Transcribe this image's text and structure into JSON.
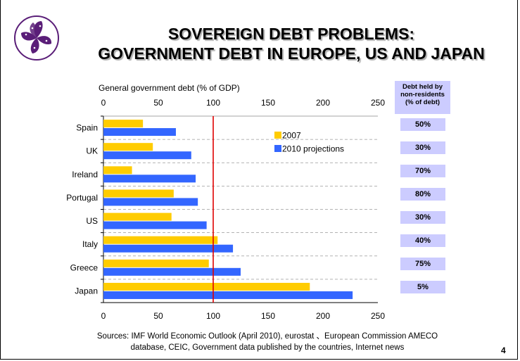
{
  "slide": {
    "title_line1": "SOVEREIGN DEBT PROBLEMS:",
    "title_line2": "GOVERNMENT DEBT IN EUROPE, US AND JAPAN",
    "page_number": "4",
    "sources_line1": "Sources:  IMF World Economic Outlook (April 2010),  eurostat 、European Commission AMECO",
    "sources_line2": "database, CEIC, Government data published by the countries, Internet news",
    "logo_icon": "bauhinia-flower-logo",
    "colors": {
      "bar_2007": "#ffcc00",
      "bar_2010": "#3366ff",
      "reference_line": "#e00000",
      "badge_bg": "#ccccff"
    }
  },
  "chart_data": {
    "type": "bar",
    "orientation": "horizontal",
    "xlabel": "General government debt (% of GDP)",
    "xlim": [
      0,
      250
    ],
    "xticks": [
      0,
      50,
      100,
      150,
      200,
      250
    ],
    "xaxis_top_and_bottom": true,
    "reference_line_x": 100,
    "categories": [
      "Spain",
      "UK",
      "Ireland",
      "Portugal",
      "US",
      "Italy",
      "Greece",
      "Japan"
    ],
    "series": [
      {
        "name": "2007",
        "color": "#ffcc00",
        "values": [
          36,
          45,
          26,
          64,
          62,
          104,
          96,
          188
        ]
      },
      {
        "name": "2010 projections",
        "color": "#3366ff",
        "values": [
          66,
          80,
          84,
          86,
          94,
          118,
          125,
          227
        ]
      }
    ],
    "legend_position": "top-right",
    "grid": "horizontal-dashed",
    "nonresidents": {
      "header": [
        "Debt held by",
        "non-residents",
        "(% of debt)"
      ],
      "values": [
        "50%",
        "30%",
        "70%",
        "80%",
        "30%",
        "40%",
        "75%",
        "5%"
      ]
    }
  }
}
